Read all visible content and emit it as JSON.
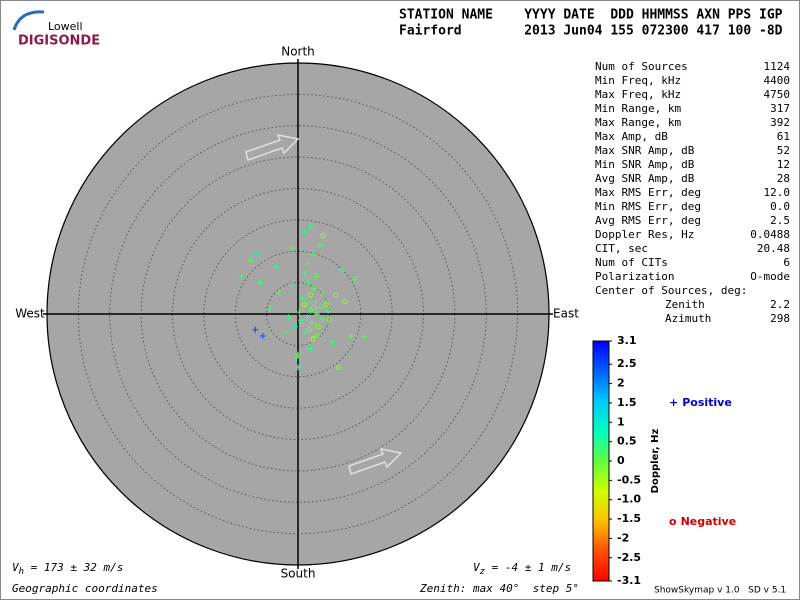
{
  "logo": {
    "small": "Lowell",
    "big": "DIGISONDE"
  },
  "header": {
    "labels": "STATION NAME    YYYY DATE  DDD HHMMSS AXN PPS IGP",
    "values": "Fairford        2013 Jun04 155 072300 417 100 -8D"
  },
  "stats": [
    [
      "Num of Sources",
      "1124"
    ],
    [
      "Min Freq, kHz",
      "4400"
    ],
    [
      "Max Freq, kHz",
      "4750"
    ],
    [
      "Min Range, km",
      "317"
    ],
    [
      "Max Range, km",
      "392"
    ],
    [
      "Max Amp, dB",
      "61"
    ],
    [
      "Max SNR Amp, dB",
      "52"
    ],
    [
      "Min SNR Amp, dB",
      "12"
    ],
    [
      "Avg SNR Amp, dB",
      "28"
    ],
    [
      "Max RMS Err, deg",
      "12.0"
    ],
    [
      "Min RMS Err, deg",
      "0.0"
    ],
    [
      "Avg RMS Err, deg",
      "2.5"
    ],
    [
      "Doppler Res, Hz",
      "0.0488"
    ],
    [
      "CIT, sec",
      "20.48"
    ],
    [
      "Num of CITs",
      "6"
    ],
    [
      "Polarization",
      "O-mode"
    ]
  ],
  "center": {
    "title": "Center of Sources, deg:",
    "rows": [
      [
        "Zenith",
        "2.2"
      ],
      [
        "Azimuth",
        "298"
      ]
    ]
  },
  "compass": {
    "north": "North",
    "south": "South",
    "east": "East",
    "west": "West"
  },
  "legend": {
    "positive": {
      "marker": "+",
      "label": "Positive"
    },
    "negative": {
      "marker": "o",
      "label": "Negative"
    }
  },
  "footer": {
    "vh": {
      "symbol": "V",
      "subscript": "h",
      "text": " = 173 ± 32 m/s"
    },
    "vz": {
      "symbol": "V",
      "subscript": "z",
      "text": " = -4 ± 1 m/s"
    },
    "coords": "Geographic coordinates",
    "zenith": "Zenith: max 40°  step 5°",
    "version": "ShowSkymap v 1.0   SD v 5.1"
  },
  "chart_data": {
    "type": "scatter",
    "x": [
      2.0,
      2.5,
      1.5,
      3.0,
      1.0,
      2.2,
      2.8,
      1.8,
      3.5,
      0.5,
      2.0,
      4.0,
      1.2,
      2.6,
      3.2,
      0.8,
      1.6,
      2.4,
      3.8,
      0.2,
      -0.5,
      4.5,
      1.0,
      2.0,
      3.0,
      5.0,
      -1.0,
      1.5,
      2.5,
      6.0,
      -2.0,
      0.0,
      3.5,
      -3.5,
      -6.5,
      -7.5,
      -9.0,
      -6.0,
      -1.0,
      1.0,
      4.0,
      7.0,
      9.0,
      7.5,
      5.5,
      8.5,
      -0.2,
      0.0,
      2.0,
      -6.8,
      -5.6,
      -4.5,
      -3.0,
      6.5,
      10.5,
      -1.5,
      3.0,
      1.8,
      0.6,
      4.8
    ],
    "y": [
      0.5,
      1.0,
      -0.5,
      0.0,
      1.5,
      -1.5,
      2.0,
      -2.5,
      1.0,
      -1.0,
      3.0,
      -0.8,
      -3.0,
      4.0,
      -2.0,
      2.5,
      5.0,
      -4.0,
      3.0,
      0.3,
      -2.0,
      1.5,
      6.5,
      -5.5,
      6.0,
      -1.0,
      4.5,
      8.0,
      9.5,
      3.0,
      -3.0,
      -6.5,
      11.0,
      7.5,
      9.5,
      8.5,
      6.0,
      5.0,
      10.5,
      13.0,
      12.5,
      7.0,
      5.5,
      2.0,
      -4.5,
      -3.5,
      -7.0,
      -8.5,
      14.0,
      -2.5,
      -3.5,
      0.8,
      3.5,
      -8.5,
      -3.6,
      -0.5,
      -3.5,
      1.8,
      -1.5,
      0.5
    ],
    "doppler": [
      0.3,
      -0.2,
      0.5,
      0.1,
      -0.4,
      0.2,
      0.6,
      -0.1,
      0.3,
      0.4,
      -0.3,
      0.2,
      0.5,
      0.1,
      -0.2,
      0.4,
      0.3,
      -0.5,
      0.2,
      0.1,
      0.6,
      -0.3,
      0.2,
      0.4,
      0.1,
      -0.1,
      0.5,
      0.3,
      0.2,
      -0.2,
      0.4,
      0.1,
      0.3,
      0.5,
      0.6,
      0.2,
      0.4,
      0.3,
      0.1,
      0.5,
      -0.4,
      0.3,
      0.2,
      -0.3,
      0.4,
      0.1,
      0.2,
      0.5,
      0.3,
      2.6,
      2.4,
      0.3,
      0.2,
      -0.2,
      0.1,
      0.4,
      -0.1,
      0.3,
      0.5,
      0.2
    ],
    "xlim": [
      -40,
      40
    ],
    "ylim": [
      -40,
      40
    ],
    "rticks": [
      5,
      10,
      15,
      20,
      25,
      30,
      35,
      40
    ],
    "clim": [
      -3.1,
      3.1
    ],
    "cticks": [
      3.1,
      2.5,
      2,
      1.5,
      1,
      0.5,
      0,
      -0.5,
      {
        "value": -1,
        "label": "-1.0"
      },
      -1.5,
      -2,
      -2.5,
      -3.1
    ],
    "colorbar_label": "Doppler, Hz",
    "colors": [
      "#0000ff",
      "#0060ff",
      "#00c8ff",
      "#00ffc0",
      "#60ff40",
      "#d0ff00",
      "#ffc000",
      "#ff5000",
      "#ff0000"
    ],
    "plot_color": "#a6a6a6"
  }
}
